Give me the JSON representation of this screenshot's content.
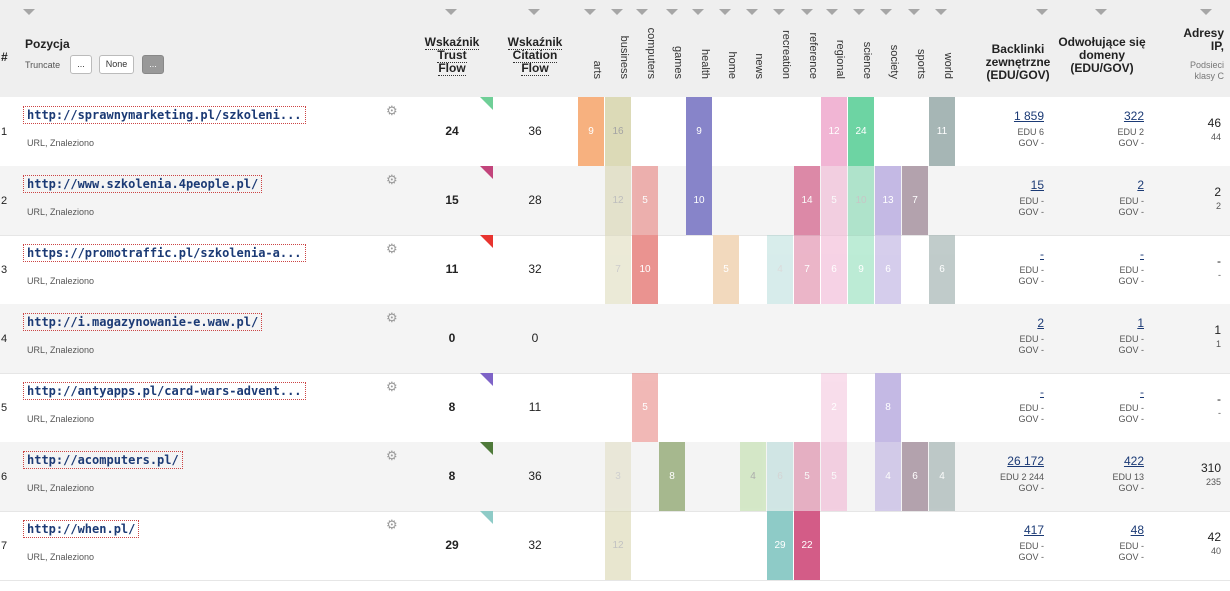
{
  "header": {
    "num": "#",
    "position": "Pozycja",
    "truncate": {
      "label": "Truncate",
      "options": [
        "...",
        "None",
        "..."
      ],
      "active_index": 2
    },
    "trust_flow": [
      "Wskaźnik",
      "Trust",
      "Flow"
    ],
    "citation_flow": [
      "Wskaźnik",
      "Citation",
      "Flow"
    ],
    "topics": [
      "arts",
      "business",
      "computers",
      "games",
      "health",
      "home",
      "news",
      "recreation",
      "reference",
      "regional",
      "science",
      "society",
      "sports",
      "world"
    ],
    "backlinks": [
      "Backlinki",
      "zewnętrzne",
      "(EDU/GOV)"
    ],
    "ref_domains": [
      "Odwołujące się",
      "domeny",
      "(EDU/GOV)"
    ],
    "ips": [
      "Adresy",
      "IP,"
    ],
    "ips_sub": [
      "Podsieci",
      "klasy C"
    ]
  },
  "colors": {
    "arts": "#f7b17f",
    "business": "#d9d6b0",
    "computers": "#ea9390",
    "games": "#a6b88e",
    "health": "#8784c9",
    "home": "#f2d9bd",
    "news": "#cde5bd",
    "recreation": "#8ecbc7",
    "reference": "#d35c87",
    "regional": "#f1b5d4",
    "science": "#6dd4a3",
    "society": "#c4b9e4",
    "sports": "#b3a2ad",
    "world": "#a6b6b5"
  },
  "rows": [
    {
      "num": "1",
      "url": "http://sprawnymarketing.pl/szkoleni...",
      "sub": "URL, Znaleziono",
      "tf": "24",
      "cf": "36",
      "flag": "#6fcf97",
      "topics": [
        {
          "t": "arts",
          "v": "9",
          "o": 1
        },
        {
          "t": "business",
          "v": "16",
          "o": 0.9,
          "light": true
        },
        {
          "t": "health",
          "v": "9",
          "o": 1
        },
        {
          "t": "regional",
          "v": "12",
          "o": 1
        },
        {
          "t": "science",
          "v": "24",
          "o": 1
        },
        {
          "t": "world",
          "v": "11",
          "o": 1
        }
      ],
      "backlinks": "1 859",
      "bl_edu": "EDU 6",
      "bl_gov": "GOV -",
      "domains": "322",
      "d_edu": "EDU 2",
      "d_gov": "GOV -",
      "ips": "46",
      "subnets": "44"
    },
    {
      "num": "2",
      "url": "http://www.szkolenia.4people.pl/",
      "sub": "URL, Znaleziono",
      "tf": "15",
      "cf": "28",
      "flag": "#c2447b",
      "topics": [
        {
          "t": "business",
          "v": "12",
          "o": 0.6,
          "light": true
        },
        {
          "t": "computers",
          "v": "5",
          "o": 0.7
        },
        {
          "t": "health",
          "v": "10",
          "o": 1
        },
        {
          "t": "reference",
          "v": "14",
          "o": 0.7
        },
        {
          "t": "regional",
          "v": "5",
          "o": 0.6
        },
        {
          "t": "science",
          "v": "10",
          "o": 0.5,
          "light": true
        },
        {
          "t": "society",
          "v": "13",
          "o": 1
        },
        {
          "t": "sports",
          "v": "7",
          "o": 1
        }
      ],
      "backlinks": "15",
      "bl_edu": "EDU -",
      "bl_gov": "GOV -",
      "domains": "2",
      "d_edu": "EDU -",
      "d_gov": "GOV -",
      "ips": "2",
      "subnets": "2"
    },
    {
      "num": "3",
      "url": "https://promotraffic.pl/szkolenia-a...",
      "sub": "URL, Znaleziono",
      "tf": "11",
      "cf": "32",
      "flag": "#e8342f",
      "topics": [
        {
          "t": "business",
          "v": "7",
          "o": 0.5,
          "light": true
        },
        {
          "t": "computers",
          "v": "10",
          "o": 1
        },
        {
          "t": "home",
          "v": "5",
          "o": 1
        },
        {
          "t": "recreation",
          "v": "4",
          "o": 0.35,
          "light": true
        },
        {
          "t": "reference",
          "v": "7",
          "o": 0.45
        },
        {
          "t": "regional",
          "v": "6",
          "o": 0.6
        },
        {
          "t": "science",
          "v": "9",
          "o": 0.45
        },
        {
          "t": "society",
          "v": "6",
          "o": 0.7
        },
        {
          "t": "world",
          "v": "6",
          "o": 0.7
        }
      ],
      "backlinks": "-",
      "bl_edu": "EDU -",
      "bl_gov": "GOV -",
      "domains": "-",
      "d_edu": "EDU -",
      "d_gov": "GOV -",
      "ips": "-",
      "subnets": "-"
    },
    {
      "num": "4",
      "url": "http://i.magazynowanie-e.waw.pl/",
      "sub": "URL, Znaleziono",
      "tf": "0",
      "cf": "0",
      "flag": "",
      "topics": [],
      "backlinks": "2",
      "bl_edu": "EDU -",
      "bl_gov": "GOV -",
      "domains": "1",
      "d_edu": "EDU -",
      "d_gov": "GOV -",
      "ips": "1",
      "subnets": "1"
    },
    {
      "num": "5",
      "url": "http://antyapps.pl/card-wars-advent...",
      "sub": "URL, Znaleziono",
      "tf": "8",
      "cf": "11",
      "flag": "#7e63c7",
      "topics": [
        {
          "t": "computers",
          "v": "5",
          "o": 0.65
        },
        {
          "t": "regional",
          "v": "2",
          "o": 0.45
        },
        {
          "t": "society",
          "v": "8",
          "o": 1
        }
      ],
      "backlinks": "-",
      "bl_edu": "EDU -",
      "bl_gov": "GOV -",
      "domains": "-",
      "d_edu": "EDU -",
      "d_gov": "GOV -",
      "ips": "-",
      "subnets": "-"
    },
    {
      "num": "6",
      "url": "http://acomputers.pl/",
      "sub": "URL, Znaleziono",
      "tf": "8",
      "cf": "36",
      "flag": "#4f7a3a",
      "topics": [
        {
          "t": "business",
          "v": "3",
          "o": 0.4,
          "light": true
        },
        {
          "t": "games",
          "v": "8",
          "o": 1
        },
        {
          "t": "news",
          "v": "4",
          "o": 0.8,
          "light": true
        },
        {
          "t": "recreation",
          "v": "6",
          "o": 0.35,
          "light": true
        },
        {
          "t": "reference",
          "v": "5",
          "o": 0.45
        },
        {
          "t": "regional",
          "v": "5",
          "o": 0.6
        },
        {
          "t": "society",
          "v": "4",
          "o": 0.7
        },
        {
          "t": "sports",
          "v": "6",
          "o": 1
        },
        {
          "t": "world",
          "v": "4",
          "o": 0.7
        }
      ],
      "backlinks": "26 172",
      "bl_edu": "EDU 2 244",
      "bl_gov": "GOV -",
      "domains": "422",
      "d_edu": "EDU 13",
      "d_gov": "GOV -",
      "ips": "310",
      "subnets": "235"
    },
    {
      "num": "7",
      "url": "http://when.pl/",
      "sub": "URL, Znaleziono",
      "tf": "29",
      "cf": "32",
      "flag": "#8ecbc7",
      "topics": [
        {
          "t": "business",
          "v": "12",
          "o": 0.6,
          "light": true
        },
        {
          "t": "recreation",
          "v": "29",
          "o": 1
        },
        {
          "t": "reference",
          "v": "22",
          "o": 1
        }
      ],
      "backlinks": "417",
      "bl_edu": "EDU -",
      "bl_gov": "GOV -",
      "domains": "48",
      "d_edu": "EDU -",
      "d_gov": "GOV -",
      "ips": "42",
      "subnets": "40"
    }
  ]
}
